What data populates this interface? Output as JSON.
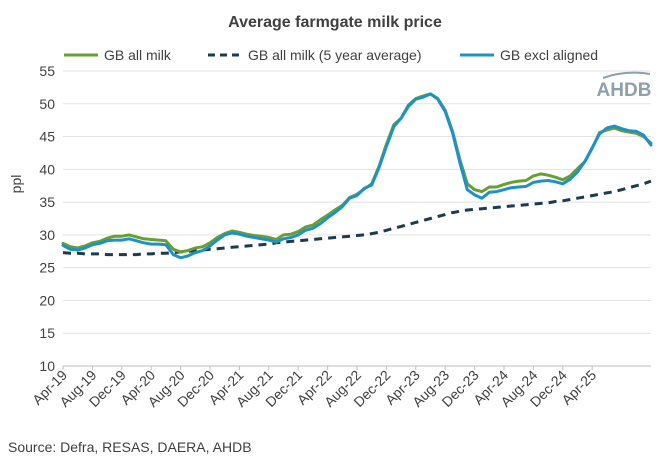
{
  "chart_data": {
    "type": "line",
    "title": "Average farmgate milk price",
    "ylabel": "ppl",
    "xlabel": "",
    "ylim": [
      10,
      55
    ],
    "yticks": [
      10,
      15,
      20,
      25,
      30,
      35,
      40,
      45,
      50,
      55
    ],
    "x_start": "Apr-19",
    "x_end": "May-25",
    "x_tick_labels": [
      "Apr-19",
      "Aug-19",
      "Dec-19",
      "Apr-20",
      "Aug-20",
      "Dec-20",
      "Apr-21",
      "Aug-21",
      "Dec-21",
      "Apr-22",
      "Aug-22",
      "Dec-22",
      "Apr-23",
      "Aug-23",
      "Dec-23",
      "Apr-24",
      "Aug-24",
      "Dec-24",
      "Apr-25"
    ],
    "grid": "horizontal",
    "legend_position": "top",
    "source": "Source: Defra, RESAS, DAERA, AHDB",
    "logo_text": "AHDB",
    "series": [
      {
        "name": "GB all milk",
        "color": "#6a9e2f",
        "style": "solid",
        "values": [
          28.7,
          28.2,
          28.0,
          28.3,
          28.8,
          29.0,
          29.5,
          29.8,
          29.8,
          30.0,
          29.7,
          29.4,
          29.3,
          29.2,
          29.1,
          27.8,
          27.4,
          27.6,
          28.0,
          28.2,
          28.8,
          29.6,
          30.2,
          30.6,
          30.4,
          30.1,
          29.9,
          29.8,
          29.6,
          29.3,
          30.0,
          30.1,
          30.5,
          31.2,
          31.5,
          32.3,
          33.0,
          33.8,
          34.5,
          35.7,
          36.2,
          37.0,
          37.8,
          40.5,
          43.8,
          46.8,
          47.8,
          49.8,
          50.8,
          51.2,
          51.5,
          50.8,
          49.0,
          45.8,
          41.5,
          37.8,
          36.9,
          36.6,
          37.3,
          37.3,
          37.7,
          38.0,
          38.2,
          38.3,
          39.0,
          39.3,
          39.1,
          38.8,
          38.4,
          39.0,
          40.1,
          41.2,
          43.2,
          45.6,
          46.0,
          46.3,
          45.9,
          45.7,
          45.5,
          45.0,
          44.0
        ]
      },
      {
        "name": "GB all milk (5 year average)",
        "color": "#1b3b4f",
        "style": "dashed",
        "values": [
          27.3,
          27.2,
          27.2,
          27.1,
          27.1,
          27.1,
          27.0,
          27.0,
          27.0,
          27.0,
          27.0,
          27.1,
          27.1,
          27.2,
          27.2,
          27.3,
          27.4,
          27.5,
          27.6,
          27.7,
          27.8,
          27.9,
          28.0,
          28.1,
          28.2,
          28.3,
          28.4,
          28.5,
          28.6,
          28.8,
          28.9,
          29.0,
          29.1,
          29.2,
          29.3,
          29.4,
          29.5,
          29.6,
          29.7,
          29.8,
          29.9,
          30.0,
          30.2,
          30.4,
          30.7,
          31.0,
          31.3,
          31.6,
          31.9,
          32.2,
          32.5,
          32.8,
          33.1,
          33.4,
          33.6,
          33.8,
          33.9,
          34.0,
          34.1,
          34.2,
          34.3,
          34.4,
          34.5,
          34.6,
          34.7,
          34.8,
          34.9,
          35.1,
          35.2,
          35.4,
          35.6,
          35.8,
          36.0,
          36.2,
          36.4,
          36.6,
          36.9,
          37.2,
          37.5,
          37.8,
          38.2
        ]
      },
      {
        "name": "GB excl aligned",
        "color": "#1f91c9",
        "style": "solid",
        "values": [
          28.4,
          27.8,
          27.7,
          28.0,
          28.5,
          28.7,
          29.1,
          29.2,
          29.2,
          29.4,
          29.1,
          28.8,
          28.6,
          28.6,
          28.5,
          27.0,
          26.5,
          26.8,
          27.3,
          27.6,
          28.3,
          29.2,
          30.0,
          30.3,
          30.1,
          29.8,
          29.6,
          29.4,
          29.2,
          28.9,
          29.4,
          29.6,
          30.0,
          30.7,
          31.0,
          31.7,
          32.6,
          33.4,
          34.3,
          35.6,
          36.0,
          37.1,
          37.6,
          40.3,
          43.5,
          46.5,
          47.8,
          49.6,
          50.7,
          51.0,
          51.5,
          50.7,
          48.8,
          45.6,
          41.0,
          36.9,
          36.1,
          35.6,
          36.5,
          36.6,
          36.9,
          37.2,
          37.3,
          37.4,
          38.0,
          38.2,
          38.3,
          38.1,
          37.8,
          38.5,
          39.6,
          41.2,
          43.3,
          45.4,
          46.3,
          46.6,
          46.2,
          45.9,
          45.8,
          45.2,
          43.7
        ]
      }
    ]
  }
}
